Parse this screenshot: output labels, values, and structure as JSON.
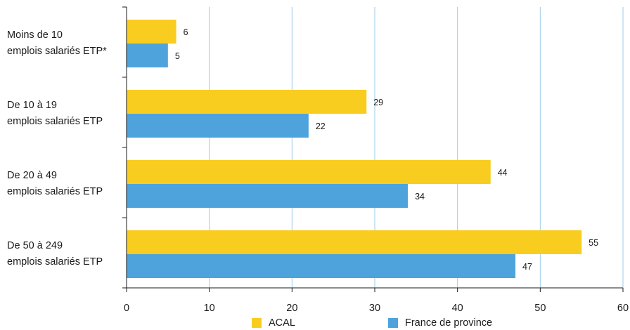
{
  "chart_data": {
    "type": "bar",
    "orientation": "horizontal",
    "title": "",
    "xlabel": "",
    "ylabel": "",
    "xlim": [
      0,
      60
    ],
    "x_ticks": [
      0,
      10,
      20,
      30,
      40,
      50,
      60
    ],
    "grid": "vertical",
    "legend_position": "bottom",
    "categories": [
      [
        "Moins de 10",
        "emplois salariés ETP*"
      ],
      [
        "De 10 à 19",
        "emplois salariés ETP"
      ],
      [
        "De 20 à 49",
        "emplois salariés ETP"
      ],
      [
        "De 50 à 249",
        "emplois salariés ETP"
      ]
    ],
    "series": [
      {
        "name": "ACAL",
        "color": "#f9cd1f",
        "values": [
          6,
          29,
          44,
          55
        ],
        "labels": [
          "6",
          "29",
          "44",
          "55"
        ]
      },
      {
        "name": "France de province",
        "color": "#4fa3dc",
        "values": [
          5,
          22,
          34,
          47
        ],
        "labels": [
          "5",
          "22",
          "34",
          "47"
        ]
      }
    ]
  }
}
